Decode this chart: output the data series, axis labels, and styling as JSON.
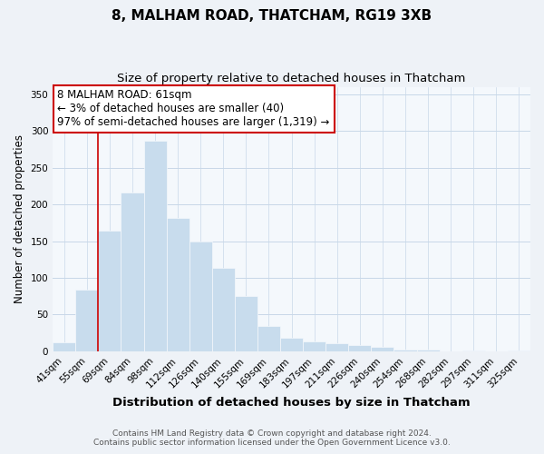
{
  "title": "8, MALHAM ROAD, THATCHAM, RG19 3XB",
  "subtitle": "Size of property relative to detached houses in Thatcham",
  "xlabel": "Distribution of detached houses by size in Thatcham",
  "ylabel": "Number of detached properties",
  "bar_labels": [
    "41sqm",
    "55sqm",
    "69sqm",
    "84sqm",
    "98sqm",
    "112sqm",
    "126sqm",
    "140sqm",
    "155sqm",
    "169sqm",
    "183sqm",
    "197sqm",
    "211sqm",
    "226sqm",
    "240sqm",
    "254sqm",
    "268sqm",
    "282sqm",
    "297sqm",
    "311sqm",
    "325sqm"
  ],
  "bar_values": [
    12,
    84,
    164,
    216,
    286,
    182,
    150,
    114,
    75,
    34,
    18,
    14,
    11,
    9,
    6,
    3,
    2,
    0,
    1,
    0,
    1
  ],
  "bar_color": "#c8dced",
  "vline_color": "#cc0000",
  "vline_x_idx": 1,
  "annotation_title": "8 MALHAM ROAD: 61sqm",
  "annotation_line1": "← 3% of detached houses are smaller (40)",
  "annotation_line2": "97% of semi-detached houses are larger (1,319) →",
  "annotation_box_color": "#ffffff",
  "annotation_box_edgecolor": "#cc0000",
  "ylim": [
    0,
    360
  ],
  "yticks": [
    0,
    50,
    100,
    150,
    200,
    250,
    300,
    350
  ],
  "footer1": "Contains HM Land Registry data © Crown copyright and database right 2024.",
  "footer2": "Contains public sector information licensed under the Open Government Licence v3.0.",
  "bg_color": "#eef2f7",
  "plot_bg_color": "#f4f8fc",
  "grid_color": "#c8d8e8",
  "title_fontsize": 11,
  "subtitle_fontsize": 9.5,
  "xlabel_fontsize": 9.5,
  "ylabel_fontsize": 8.5,
  "tick_fontsize": 7.5,
  "annotation_fontsize": 8.5,
  "footer_fontsize": 6.5
}
